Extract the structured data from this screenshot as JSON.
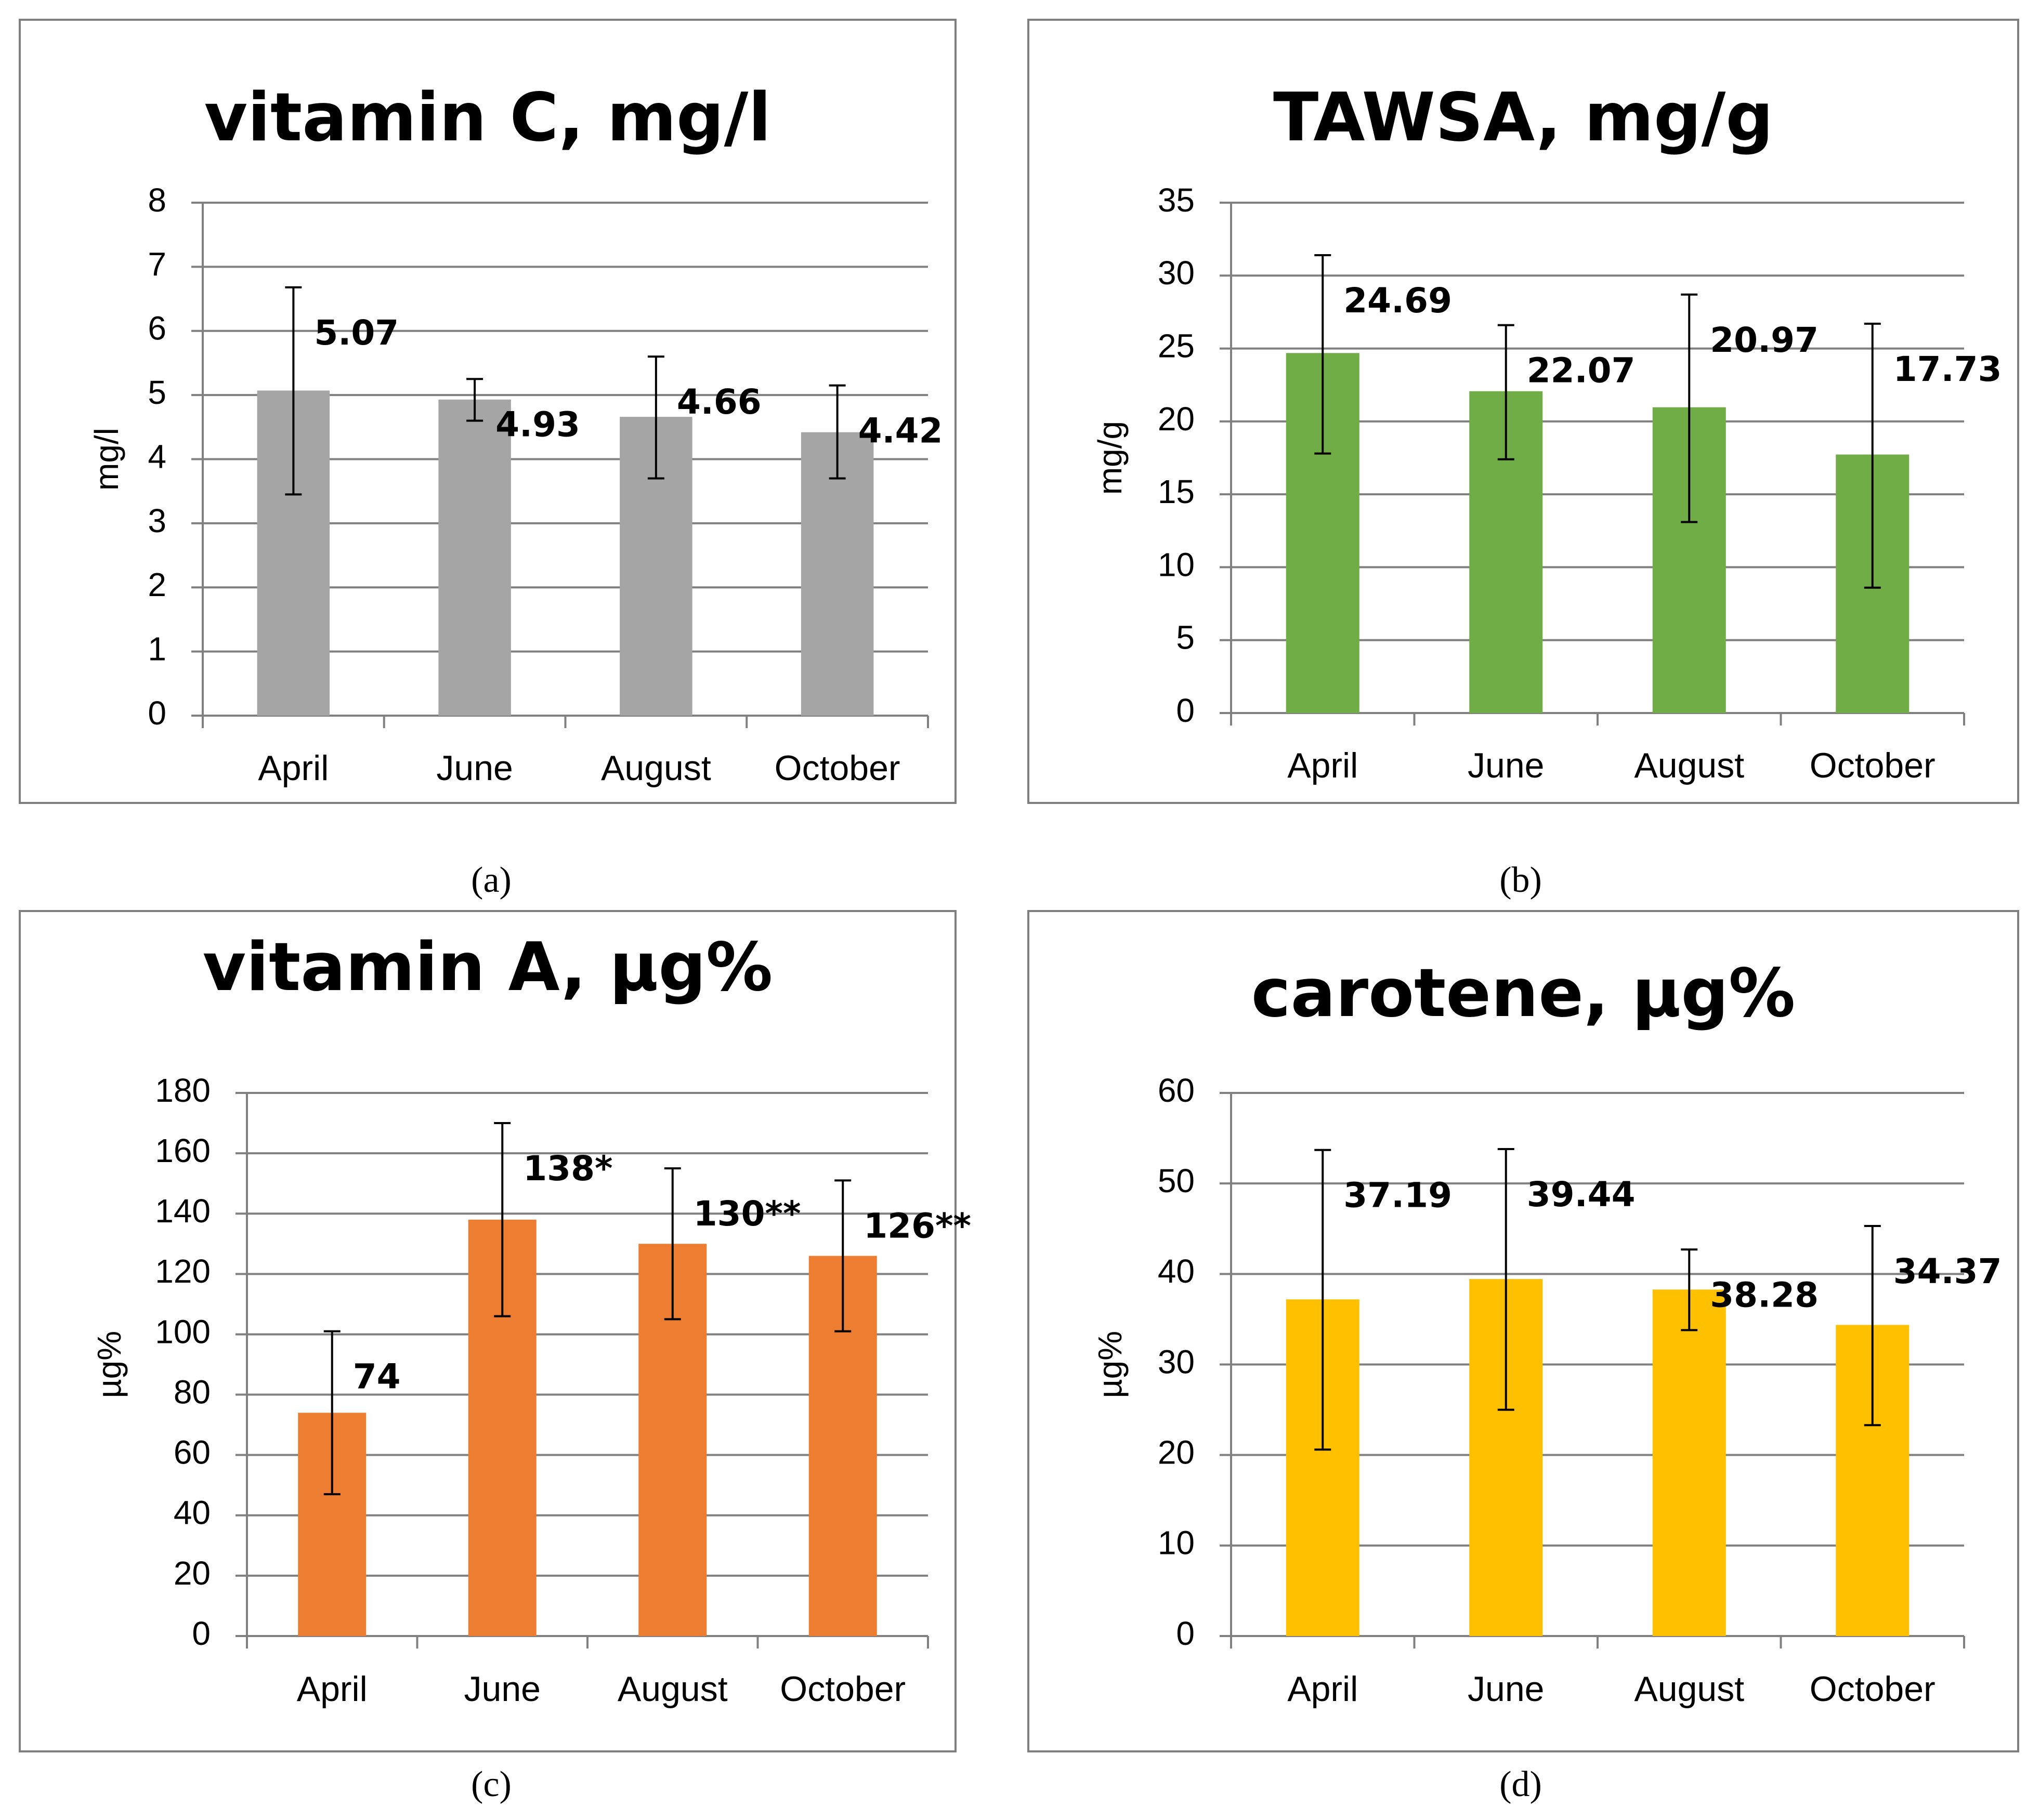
{
  "figure": {
    "captions": [
      "(a)",
      "(b)",
      "(c)",
      "(d)"
    ]
  },
  "chart_data": [
    {
      "type": "bar",
      "title": "vitamin C, mg/l",
      "ylabel": "mg/l",
      "xlabel": "",
      "categories": [
        "April",
        "June",
        "August",
        "October"
      ],
      "values": [
        5.07,
        4.93,
        4.66,
        4.42
      ],
      "data_labels": [
        "5.07",
        "4.93",
        "4.66",
        "4.42"
      ],
      "error_low": [
        3.45,
        4.6,
        3.7,
        3.7
      ],
      "error_high": [
        6.68,
        5.25,
        5.6,
        5.15
      ],
      "ylim": [
        0,
        8
      ],
      "yticks": [
        0,
        1,
        2,
        3,
        4,
        5,
        6,
        7,
        8
      ],
      "color": "#a5a5a5",
      "grid": true,
      "legend": "none"
    },
    {
      "type": "bar",
      "title": "TAWSA, mg/g",
      "ylabel": "mg/g",
      "xlabel": "",
      "categories": [
        "April",
        "June",
        "August",
        "October"
      ],
      "values": [
        24.69,
        22.07,
        20.97,
        17.73
      ],
      "data_labels": [
        "24.69",
        "22.07",
        "20.97",
        "17.73"
      ],
      "error_low": [
        17.8,
        17.4,
        13.1,
        8.6
      ],
      "error_high": [
        31.4,
        26.6,
        28.7,
        26.7
      ],
      "ylim": [
        0,
        35
      ],
      "yticks": [
        0,
        5,
        10,
        15,
        20,
        25,
        30,
        35
      ],
      "color": "#70ad47",
      "grid": true,
      "legend": "none"
    },
    {
      "type": "bar",
      "title": "vitamin A, µg%",
      "ylabel": "µg%",
      "xlabel": "",
      "categories": [
        "April",
        "June",
        "August",
        "October"
      ],
      "values": [
        74,
        138,
        130,
        126
      ],
      "data_labels": [
        "74",
        "138*",
        "130**",
        "126**"
      ],
      "error_low": [
        47,
        106,
        105,
        101
      ],
      "error_high": [
        101,
        170,
        155,
        151
      ],
      "ylim": [
        0,
        180
      ],
      "yticks": [
        0,
        20,
        40,
        60,
        80,
        100,
        120,
        140,
        160,
        180
      ],
      "color": "#ed7d31",
      "grid": true,
      "legend": "none"
    },
    {
      "type": "bar",
      "title": "carotene, µg%",
      "ylabel": "µg%",
      "xlabel": "",
      "categories": [
        "April",
        "June",
        "August",
        "October"
      ],
      "values": [
        37.19,
        39.44,
        38.28,
        34.37
      ],
      "data_labels": [
        "37.19",
        "39.44",
        "38.28",
        "34.37"
      ],
      "error_low": [
        20.6,
        25.0,
        33.8,
        23.3
      ],
      "error_high": [
        53.7,
        53.8,
        42.7,
        45.3
      ],
      "ylim": [
        0,
        60
      ],
      "yticks": [
        0,
        10,
        20,
        30,
        40,
        50,
        60
      ],
      "color": "#ffc000",
      "grid": true,
      "legend": "none"
    }
  ]
}
